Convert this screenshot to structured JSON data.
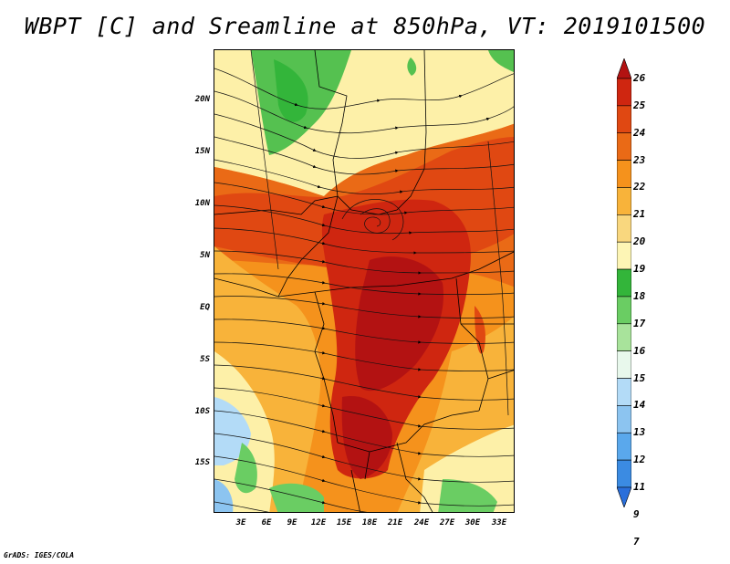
{
  "title": "WBPT [C] and Sreamline at 850hPa, VT: 2019101500",
  "credit": "GrADS: IGES/COLA",
  "lat_labels": [
    "20N",
    "15N",
    "10N",
    "5N",
    "EQ",
    "5S",
    "10S",
    "15S"
  ],
  "lon_labels": [
    "3E",
    "6E",
    "9E",
    "12E",
    "15E",
    "18E",
    "21E",
    "24E",
    "27E",
    "30E",
    "33E"
  ],
  "colorbar": {
    "labels": [
      "26",
      "25",
      "24",
      "23",
      "22",
      "21",
      "20",
      "19",
      "18",
      "17",
      "16",
      "15",
      "14",
      "13",
      "12",
      "11",
      "9",
      "7"
    ],
    "colors": [
      "#b31212",
      "#cf2610",
      "#e04812",
      "#ea6a16",
      "#f5921c",
      "#f8b33a",
      "#f9d77e",
      "#fdf5b5",
      "#33b53a",
      "#6acd63",
      "#a8e39b",
      "#e8f8ec",
      "#b3dbf7",
      "#8cc4f0",
      "#5aa8ec",
      "#3b8be2",
      "#2a6fdb"
    ]
  }
}
